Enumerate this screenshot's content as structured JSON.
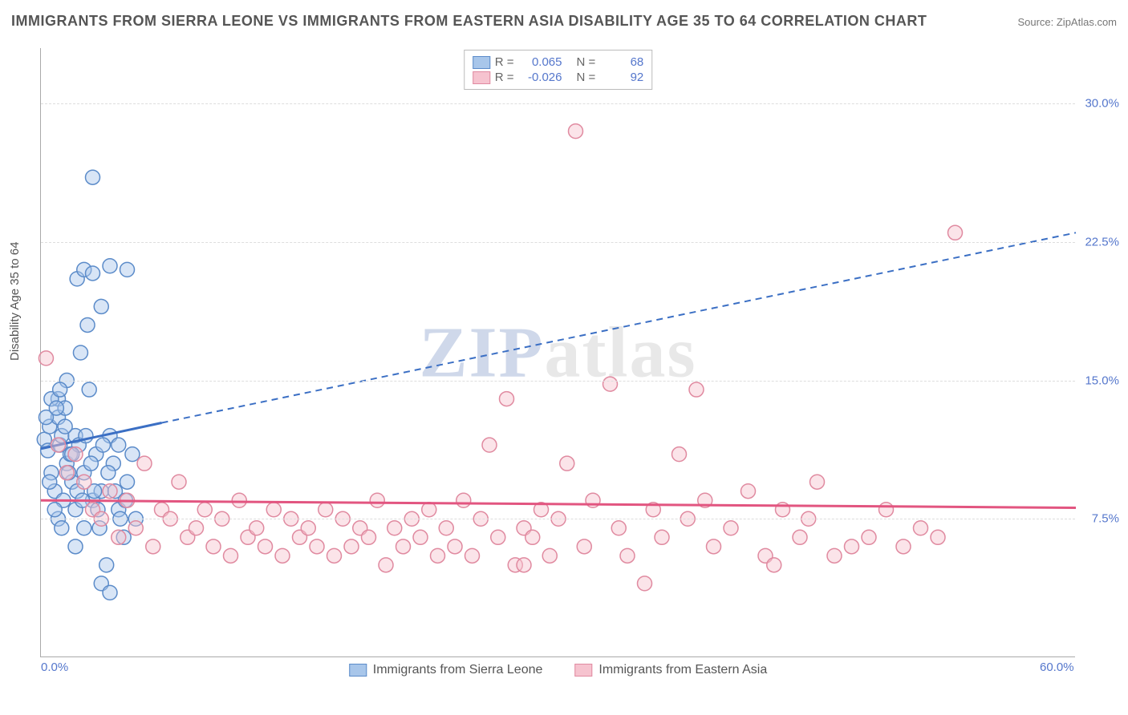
{
  "title": "IMMIGRANTS FROM SIERRA LEONE VS IMMIGRANTS FROM EASTERN ASIA DISABILITY AGE 35 TO 64 CORRELATION CHART",
  "source": "Source: ZipAtlas.com",
  "y_axis_label": "Disability Age 35 to 64",
  "watermark": {
    "part1": "ZIP",
    "part2": "atlas"
  },
  "chart": {
    "type": "scatter",
    "xlim": [
      0,
      60
    ],
    "ylim": [
      0,
      33
    ],
    "x_ticks": [
      {
        "pos": 0,
        "label": "0.0%"
      },
      {
        "pos": 60,
        "label": "60.0%"
      }
    ],
    "y_ticks": [
      {
        "pos": 7.5,
        "label": "7.5%"
      },
      {
        "pos": 15.0,
        "label": "15.0%"
      },
      {
        "pos": 22.5,
        "label": "22.5%"
      },
      {
        "pos": 30.0,
        "label": "30.0%"
      }
    ],
    "grid_color": "#dddddd",
    "background_color": "#ffffff",
    "marker_radius": 9,
    "marker_opacity": 0.45,
    "series": [
      {
        "id": "sierra_leone",
        "name": "Immigrants from Sierra Leone",
        "fill_color": "#a8c6ea",
        "stroke_color": "#5b8bc9",
        "trend": {
          "solid": [
            [
              0,
              11.3
            ],
            [
              7,
              12.7
            ]
          ],
          "dashed": [
            [
              7,
              12.7
            ],
            [
              60,
              23.0
            ]
          ],
          "color": "#3b6fc4",
          "width": 3,
          "dash": "8,6"
        },
        "R_label": "R =",
        "R_value": "0.065",
        "N_label": "N =",
        "N_value": "68",
        "points": [
          [
            0.2,
            11.8
          ],
          [
            0.4,
            11.2
          ],
          [
            0.5,
            12.5
          ],
          [
            0.6,
            10.0
          ],
          [
            0.8,
            9.0
          ],
          [
            1.0,
            13.0
          ],
          [
            1.0,
            14.0
          ],
          [
            1.1,
            11.5
          ],
          [
            1.2,
            12.0
          ],
          [
            1.3,
            8.5
          ],
          [
            1.4,
            13.5
          ],
          [
            1.5,
            10.5
          ],
          [
            1.5,
            15.0
          ],
          [
            1.7,
            11.0
          ],
          [
            1.8,
            9.5
          ],
          [
            2.0,
            12.0
          ],
          [
            2.0,
            8.0
          ],
          [
            2.1,
            20.5
          ],
          [
            2.2,
            11.5
          ],
          [
            2.3,
            16.5
          ],
          [
            2.5,
            10.0
          ],
          [
            2.5,
            21.0
          ],
          [
            2.7,
            18.0
          ],
          [
            2.8,
            14.5
          ],
          [
            3.0,
            8.5
          ],
          [
            3.0,
            20.8
          ],
          [
            3.2,
            11.0
          ],
          [
            3.4,
            7.0
          ],
          [
            3.5,
            19.0
          ],
          [
            3.5,
            9.0
          ],
          [
            3.8,
            5.0
          ],
          [
            4.0,
            21.2
          ],
          [
            4.0,
            12.0
          ],
          [
            4.2,
            10.5
          ],
          [
            4.5,
            8.0
          ],
          [
            4.5,
            11.5
          ],
          [
            4.8,
            6.5
          ],
          [
            5.0,
            21.0
          ],
          [
            5.0,
            9.5
          ],
          [
            5.3,
            11.0
          ],
          [
            5.5,
            7.5
          ],
          [
            3.0,
            26.0
          ],
          [
            3.5,
            4.0
          ],
          [
            4.0,
            3.5
          ],
          [
            1.0,
            7.5
          ],
          [
            1.2,
            7.0
          ],
          [
            0.8,
            8.0
          ],
          [
            0.5,
            9.5
          ],
          [
            2.0,
            6.0
          ],
          [
            2.5,
            7.0
          ],
          [
            0.3,
            13.0
          ],
          [
            0.6,
            14.0
          ],
          [
            0.9,
            13.5
          ],
          [
            1.1,
            14.5
          ],
          [
            1.4,
            12.5
          ],
          [
            1.6,
            10.0
          ],
          [
            1.8,
            11.0
          ],
          [
            2.1,
            9.0
          ],
          [
            2.4,
            8.5
          ],
          [
            2.6,
            12.0
          ],
          [
            2.9,
            10.5
          ],
          [
            3.1,
            9.0
          ],
          [
            3.3,
            8.0
          ],
          [
            3.6,
            11.5
          ],
          [
            3.9,
            10.0
          ],
          [
            4.3,
            9.0
          ],
          [
            4.6,
            7.5
          ],
          [
            4.9,
            8.5
          ]
        ]
      },
      {
        "id": "eastern_asia",
        "name": "Immigrants from Eastern Asia",
        "fill_color": "#f6c3cf",
        "stroke_color": "#e08aa0",
        "trend": {
          "solid": [
            [
              0,
              8.5
            ],
            [
              60,
              8.1
            ]
          ],
          "color": "#e25580",
          "width": 3
        },
        "R_label": "R =",
        "R_value": "-0.026",
        "N_label": "N =",
        "N_value": "92",
        "points": [
          [
            0.3,
            16.2
          ],
          [
            1.0,
            11.5
          ],
          [
            1.5,
            10.0
          ],
          [
            2.0,
            11.0
          ],
          [
            2.5,
            9.5
          ],
          [
            3.0,
            8.0
          ],
          [
            3.5,
            7.5
          ],
          [
            4.0,
            9.0
          ],
          [
            4.5,
            6.5
          ],
          [
            5.0,
            8.5
          ],
          [
            5.5,
            7.0
          ],
          [
            6.0,
            10.5
          ],
          [
            6.5,
            6.0
          ],
          [
            7.0,
            8.0
          ],
          [
            7.5,
            7.5
          ],
          [
            8.0,
            9.5
          ],
          [
            8.5,
            6.5
          ],
          [
            9.0,
            7.0
          ],
          [
            9.5,
            8.0
          ],
          [
            10.0,
            6.0
          ],
          [
            10.5,
            7.5
          ],
          [
            11.0,
            5.5
          ],
          [
            11.5,
            8.5
          ],
          [
            12.0,
            6.5
          ],
          [
            12.5,
            7.0
          ],
          [
            13.0,
            6.0
          ],
          [
            13.5,
            8.0
          ],
          [
            14.0,
            5.5
          ],
          [
            14.5,
            7.5
          ],
          [
            15.0,
            6.5
          ],
          [
            15.5,
            7.0
          ],
          [
            16.0,
            6.0
          ],
          [
            16.5,
            8.0
          ],
          [
            17.0,
            5.5
          ],
          [
            17.5,
            7.5
          ],
          [
            18.0,
            6.0
          ],
          [
            18.5,
            7.0
          ],
          [
            19.0,
            6.5
          ],
          [
            19.5,
            8.5
          ],
          [
            20.0,
            5.0
          ],
          [
            20.5,
            7.0
          ],
          [
            21.0,
            6.0
          ],
          [
            21.5,
            7.5
          ],
          [
            22.0,
            6.5
          ],
          [
            22.5,
            8.0
          ],
          [
            23.0,
            5.5
          ],
          [
            23.5,
            7.0
          ],
          [
            24.0,
            6.0
          ],
          [
            24.5,
            8.5
          ],
          [
            25.0,
            5.5
          ],
          [
            25.5,
            7.5
          ],
          [
            26.0,
            11.5
          ],
          [
            26.5,
            6.5
          ],
          [
            27.0,
            14.0
          ],
          [
            27.5,
            5.0
          ],
          [
            28.0,
            7.0
          ],
          [
            28.5,
            6.5
          ],
          [
            29.0,
            8.0
          ],
          [
            29.5,
            5.5
          ],
          [
            30.0,
            7.5
          ],
          [
            31.0,
            28.5
          ],
          [
            30.5,
            10.5
          ],
          [
            31.5,
            6.0
          ],
          [
            32.0,
            8.5
          ],
          [
            33.0,
            14.8
          ],
          [
            33.5,
            7.0
          ],
          [
            34.0,
            5.5
          ],
          [
            35.0,
            4.0
          ],
          [
            35.5,
            8.0
          ],
          [
            36.0,
            6.5
          ],
          [
            37.0,
            11.0
          ],
          [
            37.5,
            7.5
          ],
          [
            38.0,
            14.5
          ],
          [
            38.5,
            8.5
          ],
          [
            39.0,
            6.0
          ],
          [
            40.0,
            7.0
          ],
          [
            41.0,
            9.0
          ],
          [
            42.0,
            5.5
          ],
          [
            43.0,
            8.0
          ],
          [
            44.0,
            6.5
          ],
          [
            42.5,
            5.0
          ],
          [
            44.5,
            7.5
          ],
          [
            47.0,
            6.0
          ],
          [
            48.0,
            6.5
          ],
          [
            49.0,
            8.0
          ],
          [
            50.0,
            6.0
          ],
          [
            51.0,
            7.0
          ],
          [
            45.0,
            9.5
          ],
          [
            46.0,
            5.5
          ],
          [
            53.0,
            23.0
          ],
          [
            52.0,
            6.5
          ],
          [
            28.0,
            5.0
          ]
        ]
      }
    ]
  }
}
